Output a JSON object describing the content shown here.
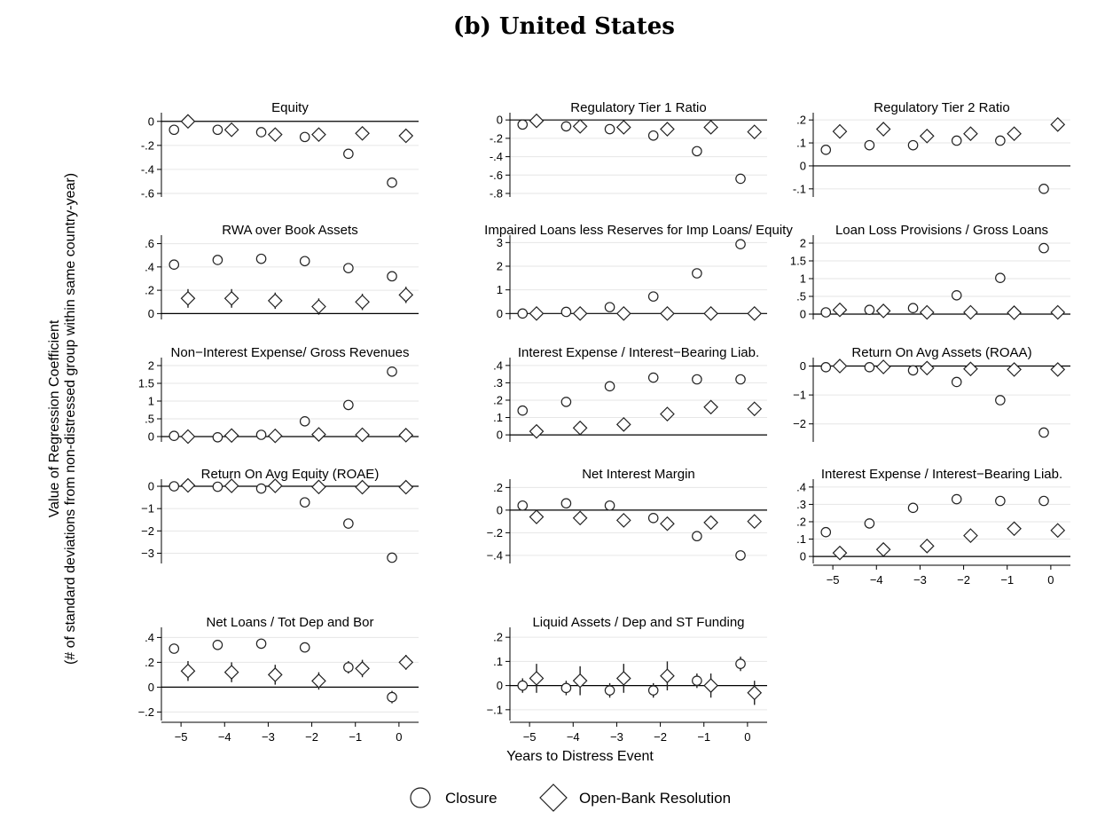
{
  "figure_title": "(b) United States",
  "y_axis_title_line1": "Value of Regression Coefficient",
  "y_axis_title_line2": "(# of standard deviations from non-distressed group within same country-year)",
  "x_axis_title": "Years to Distress Event",
  "legend": {
    "closure": "Closure",
    "open_bank": "Open-Bank Resolution"
  },
  "chart_data": [
    {
      "type": "scatter",
      "title": "Equity",
      "y_ticks": [
        "0",
        "-.2",
        "-.4",
        "-.6"
      ],
      "y_tick_values": [
        0,
        -0.2,
        -0.4,
        -0.6
      ],
      "ylim": [
        -0.6,
        0.05
      ],
      "x_ticks": [],
      "x_tick_values": [],
      "series": [
        {
          "name": "Closure",
          "marker": "circle",
          "x": [
            -5,
            -4,
            -3,
            -2,
            -1,
            0
          ],
          "y": [
            -0.07,
            -0.07,
            -0.09,
            -0.13,
            -0.27,
            -0.51
          ],
          "ci": [
            0.02,
            0.02,
            0.02,
            0.02,
            0.02,
            0.02
          ]
        },
        {
          "name": "Open-Bank Resolution",
          "marker": "diamond",
          "x": [
            -5,
            -4,
            -3,
            -2,
            -1,
            0
          ],
          "y": [
            0.0,
            -0.07,
            -0.11,
            -0.11,
            -0.1,
            -0.12
          ],
          "ci": [
            0.02,
            0.02,
            0.03,
            0.03,
            0.03,
            0.02
          ]
        }
      ]
    },
    {
      "type": "scatter",
      "title": "Regulatory Tier 1 Ratio",
      "y_ticks": [
        "0",
        "-.2",
        "-.4",
        "-.6",
        "-.8"
      ],
      "y_tick_values": [
        0,
        -0.2,
        -0.4,
        -0.6,
        -0.8
      ],
      "ylim": [
        -0.8,
        0.05
      ],
      "x_ticks": [],
      "x_tick_values": [],
      "series": [
        {
          "name": "Closure",
          "marker": "circle",
          "x": [
            -5,
            -4,
            -3,
            -2,
            -1,
            0
          ],
          "y": [
            -0.05,
            -0.07,
            -0.1,
            -0.17,
            -0.34,
            -0.64
          ],
          "ci": [
            0.02,
            0.02,
            0.02,
            0.02,
            0.02,
            0.02
          ]
        },
        {
          "name": "Open-Bank Resolution",
          "marker": "diamond",
          "x": [
            -5,
            -4,
            -3,
            -2,
            -1,
            0
          ],
          "y": [
            -0.01,
            -0.07,
            -0.08,
            -0.1,
            -0.08,
            -0.13
          ],
          "ci": [
            0.03,
            0.03,
            0.04,
            0.04,
            0.03,
            0.03
          ]
        }
      ]
    },
    {
      "type": "scatter",
      "title": "Regulatory Tier 2 Ratio",
      "y_ticks": [
        ".2",
        ".1",
        "0",
        "-.1"
      ],
      "y_tick_values": [
        0.2,
        0.1,
        0,
        -0.1
      ],
      "ylim": [
        -0.12,
        0.22
      ],
      "x_ticks": [],
      "x_tick_values": [],
      "series": [
        {
          "name": "Closure",
          "marker": "circle",
          "x": [
            -5,
            -4,
            -3,
            -2,
            -1,
            0
          ],
          "y": [
            0.07,
            0.09,
            0.09,
            0.11,
            0.11,
            -0.1
          ],
          "ci": [
            0.015,
            0.015,
            0.015,
            0.015,
            0.015,
            0.015
          ]
        },
        {
          "name": "Open-Bank Resolution",
          "marker": "diamond",
          "x": [
            -5,
            -4,
            -3,
            -2,
            -1,
            0
          ],
          "y": [
            0.15,
            0.16,
            0.13,
            0.14,
            0.14,
            0.18
          ],
          "ci": [
            0.03,
            0.03,
            0.03,
            0.03,
            0.025,
            0.02
          ]
        }
      ]
    },
    {
      "type": "scatter",
      "title": "RWA over Book Assets",
      "y_ticks": [
        ".6",
        ".4",
        ".2",
        "0"
      ],
      "y_tick_values": [
        0.6,
        0.4,
        0.2,
        0
      ],
      "ylim": [
        -0.02,
        0.65
      ],
      "x_ticks": [],
      "x_tick_values": [],
      "series": [
        {
          "name": "Closure",
          "marker": "circle",
          "x": [
            -5,
            -4,
            -3,
            -2,
            -1,
            0
          ],
          "y": [
            0.42,
            0.46,
            0.47,
            0.45,
            0.39,
            0.32
          ],
          "ci": [
            0.04,
            0.04,
            0.04,
            0.04,
            0.04,
            0.04
          ]
        },
        {
          "name": "Open-Bank Resolution",
          "marker": "diamond",
          "x": [
            -5,
            -4,
            -3,
            -2,
            -1,
            0
          ],
          "y": [
            0.13,
            0.13,
            0.11,
            0.06,
            0.1,
            0.16
          ],
          "ci": [
            0.08,
            0.08,
            0.07,
            0.07,
            0.07,
            0.07
          ]
        }
      ]
    },
    {
      "type": "scatter",
      "title": "Impaired Loans less Reserves for Imp Loans/ Equity",
      "y_ticks": [
        "3",
        "2",
        "1",
        "0"
      ],
      "y_tick_values": [
        3,
        2,
        1,
        0
      ],
      "ylim": [
        -0.1,
        3.2
      ],
      "x_ticks": [],
      "x_tick_values": [],
      "series": [
        {
          "name": "Closure",
          "marker": "circle",
          "x": [
            -5,
            -4,
            -3,
            -2,
            -1,
            0
          ],
          "y": [
            0.0,
            0.07,
            0.27,
            0.72,
            1.7,
            2.93
          ],
          "ci": [
            0.05,
            0.05,
            0.05,
            0.05,
            0.05,
            0.05
          ]
        },
        {
          "name": "Open-Bank Resolution",
          "marker": "diamond",
          "x": [
            -5,
            -4,
            -3,
            -2,
            -1,
            0
          ],
          "y": [
            0.0,
            0.0,
            0.0,
            0.0,
            0.0,
            0.0
          ],
          "ci": [
            0.03,
            0.03,
            0.03,
            0.03,
            0.03,
            0.03
          ]
        }
      ]
    },
    {
      "type": "scatter",
      "title": "Loan Loss Provisions / Gross Loans",
      "y_ticks": [
        "2",
        "1.5",
        "1",
        ".5",
        "0"
      ],
      "y_tick_values": [
        2,
        1.5,
        1,
        0.5,
        0
      ],
      "ylim": [
        -0.05,
        2.15
      ],
      "x_ticks": [],
      "x_tick_values": [],
      "series": [
        {
          "name": "Closure",
          "marker": "circle",
          "x": [
            -5,
            -4,
            -3,
            -2,
            -1,
            0
          ],
          "y": [
            0.05,
            0.12,
            0.17,
            0.53,
            1.02,
            1.86
          ],
          "ci": [
            0.04,
            0.04,
            0.04,
            0.04,
            0.04,
            0.04
          ]
        },
        {
          "name": "Open-Bank Resolution",
          "marker": "diamond",
          "x": [
            -5,
            -4,
            -3,
            -2,
            -1,
            0
          ],
          "y": [
            0.12,
            0.09,
            0.05,
            0.05,
            0.04,
            0.05
          ],
          "ci": [
            0.04,
            0.04,
            0.04,
            0.04,
            0.04,
            0.04
          ]
        }
      ]
    },
    {
      "type": "scatter",
      "title": "Non−Interest Expense/ Gross Revenues",
      "y_ticks": [
        "2",
        "1.5",
        "1",
        ".5",
        "0"
      ],
      "y_tick_values": [
        2,
        1.5,
        1,
        0.5,
        0
      ],
      "ylim": [
        -0.05,
        2.15
      ],
      "x_ticks": [],
      "x_tick_values": [],
      "series": [
        {
          "name": "Closure",
          "marker": "circle",
          "x": [
            -5,
            -4,
            -3,
            -2,
            -1,
            0
          ],
          "y": [
            0.02,
            -0.02,
            0.05,
            0.43,
            0.89,
            1.83
          ],
          "ci": [
            0.04,
            0.04,
            0.04,
            0.04,
            0.04,
            0.04
          ]
        },
        {
          "name": "Open-Bank Resolution",
          "marker": "diamond",
          "x": [
            -5,
            -4,
            -3,
            -2,
            -1,
            0
          ],
          "y": [
            0.0,
            0.03,
            0.02,
            0.06,
            0.05,
            0.04
          ],
          "ci": [
            0.04,
            0.04,
            0.04,
            0.04,
            0.04,
            0.04
          ]
        }
      ]
    },
    {
      "type": "scatter",
      "title": "Interest Expense / Interest−Bearing Liab.",
      "y_ticks": [
        ".4",
        ".3",
        ".2",
        ".1",
        "0"
      ],
      "y_tick_values": [
        0.4,
        0.3,
        0.2,
        0.1,
        0
      ],
      "ylim": [
        -0.02,
        0.43
      ],
      "x_ticks": [],
      "x_tick_values": [],
      "series": [
        {
          "name": "Closure",
          "marker": "circle",
          "x": [
            -5,
            -4,
            -3,
            -2,
            -1,
            0
          ],
          "y": [
            0.14,
            0.19,
            0.28,
            0.33,
            0.32,
            0.32
          ],
          "ci": [
            0.02,
            0.02,
            0.02,
            0.02,
            0.02,
            0.02
          ]
        },
        {
          "name": "Open-Bank Resolution",
          "marker": "diamond",
          "x": [
            -5,
            -4,
            -3,
            -2,
            -1,
            0
          ],
          "y": [
            0.02,
            0.04,
            0.06,
            0.12,
            0.16,
            0.15
          ],
          "ci": [
            0.03,
            0.03,
            0.03,
            0.03,
            0.03,
            0.03
          ]
        }
      ]
    },
    {
      "type": "scatter",
      "title": "Return On Avg Assets (ROAA)",
      "y_ticks": [
        "0",
        "−1",
        "−2"
      ],
      "y_tick_values": [
        0,
        -1,
        -2
      ],
      "ylim": [
        -2.5,
        0.2
      ],
      "x_ticks": [],
      "x_tick_values": [],
      "series": [
        {
          "name": "Closure",
          "marker": "circle",
          "x": [
            -5,
            -4,
            -3,
            -2,
            -1,
            0
          ],
          "y": [
            -0.04,
            -0.04,
            -0.15,
            -0.55,
            -1.18,
            -2.3
          ],
          "ci": [
            0.05,
            0.05,
            0.05,
            0.05,
            0.05,
            0.05
          ]
        },
        {
          "name": "Open-Bank Resolution",
          "marker": "diamond",
          "x": [
            -5,
            -4,
            -3,
            -2,
            -1,
            0
          ],
          "y": [
            0.0,
            -0.03,
            -0.07,
            -0.1,
            -0.12,
            -0.12
          ],
          "ci": [
            0.05,
            0.05,
            0.05,
            0.05,
            0.05,
            0.05
          ]
        }
      ]
    },
    {
      "type": "scatter",
      "title": "Return On Avg Equity (ROAE)",
      "y_ticks": [
        "0",
        "−1",
        "−2",
        "−3"
      ],
      "y_tick_values": [
        0,
        -1,
        -2,
        -3
      ],
      "ylim": [
        -3.3,
        0.2
      ],
      "x_ticks": [],
      "x_tick_values": [],
      "series": [
        {
          "name": "Closure",
          "marker": "circle",
          "x": [
            -5,
            -4,
            -3,
            -2,
            -1,
            0
          ],
          "y": [
            0.0,
            -0.02,
            -0.1,
            -0.72,
            -1.67,
            -3.2
          ],
          "ci": [
            0.06,
            0.06,
            0.06,
            0.06,
            0.06,
            0.06
          ]
        },
        {
          "name": "Open-Bank Resolution",
          "marker": "diamond",
          "x": [
            -5,
            -4,
            -3,
            -2,
            -1,
            0
          ],
          "y": [
            0.04,
            0.02,
            0.02,
            -0.03,
            -0.04,
            -0.04
          ],
          "ci": [
            0.06,
            0.06,
            0.06,
            0.06,
            0.06,
            0.06
          ]
        }
      ]
    },
    {
      "type": "scatter",
      "title": "Net Interest Margin",
      "y_ticks": [
        ".2",
        "0",
        "−.2",
        "−.4"
      ],
      "y_tick_values": [
        0.2,
        0,
        -0.2,
        -0.4
      ],
      "ylim": [
        -0.44,
        0.25
      ],
      "x_ticks": [],
      "x_tick_values": [],
      "series": [
        {
          "name": "Closure",
          "marker": "circle",
          "x": [
            -5,
            -4,
            -3,
            -2,
            -1,
            0
          ],
          "y": [
            0.04,
            0.06,
            0.04,
            -0.07,
            -0.23,
            -0.4
          ],
          "ci": [
            0.03,
            0.03,
            0.03,
            0.03,
            0.03,
            0.03
          ]
        },
        {
          "name": "Open-Bank Resolution",
          "marker": "diamond",
          "x": [
            -5,
            -4,
            -3,
            -2,
            -1,
            0
          ],
          "y": [
            -0.06,
            -0.07,
            -0.09,
            -0.12,
            -0.11,
            -0.1
          ],
          "ci": [
            0.04,
            0.04,
            0.04,
            0.04,
            0.04,
            0.04
          ]
        }
      ]
    },
    {
      "type": "scatter",
      "title": "Interest Expense / Interest−Bearing Liab.",
      "y_ticks": [
        ".4",
        ".3",
        ".2",
        ".1",
        "0"
      ],
      "y_tick_values": [
        0.4,
        0.3,
        0.2,
        0.1,
        0
      ],
      "ylim": [
        -0.02,
        0.43
      ],
      "x_ticks": [
        "−5",
        "−4",
        "−3",
        "−2",
        "−1",
        "0"
      ],
      "x_tick_values": [
        -5,
        -4,
        -3,
        -2,
        -1,
        0
      ],
      "series": [
        {
          "name": "Closure",
          "marker": "circle",
          "x": [
            -5,
            -4,
            -3,
            -2,
            -1,
            0
          ],
          "y": [
            0.14,
            0.19,
            0.28,
            0.33,
            0.32,
            0.32
          ],
          "ci": [
            0.02,
            0.02,
            0.02,
            0.02,
            0.02,
            0.02
          ]
        },
        {
          "name": "Open-Bank Resolution",
          "marker": "diamond",
          "x": [
            -5,
            -4,
            -3,
            -2,
            -1,
            0
          ],
          "y": [
            0.02,
            0.04,
            0.06,
            0.12,
            0.16,
            0.15
          ],
          "ci": [
            0.03,
            0.03,
            0.03,
            0.03,
            0.03,
            0.03
          ]
        }
      ]
    },
    {
      "type": "scatter",
      "title": "Net Loans / Tot Dep and Bor",
      "y_ticks": [
        ".4",
        ".2",
        "0",
        "−.2"
      ],
      "y_tick_values": [
        0.4,
        0.2,
        0,
        -0.2
      ],
      "ylim": [
        -0.24,
        0.46
      ],
      "x_ticks": [
        "−5",
        "−4",
        "−3",
        "−2",
        "−1",
        "0"
      ],
      "x_tick_values": [
        -5,
        -4,
        -3,
        -2,
        -1,
        0
      ],
      "series": [
        {
          "name": "Closure",
          "marker": "circle",
          "x": [
            -5,
            -4,
            -3,
            -2,
            -1,
            0
          ],
          "y": [
            0.31,
            0.34,
            0.35,
            0.32,
            0.16,
            -0.08
          ],
          "ci": [
            0.04,
            0.04,
            0.04,
            0.04,
            0.05,
            0.05
          ]
        },
        {
          "name": "Open-Bank Resolution",
          "marker": "diamond",
          "x": [
            -5,
            -4,
            -3,
            -2,
            -1,
            0
          ],
          "y": [
            0.13,
            0.12,
            0.1,
            0.05,
            0.15,
            0.2
          ],
          "ci": [
            0.08,
            0.08,
            0.08,
            0.07,
            0.07,
            0.06
          ]
        }
      ]
    },
    {
      "type": "scatter",
      "title": "Liquid Assets / Dep and ST Funding",
      "y_ticks": [
        ".2",
        ".1",
        "0",
        "−.1"
      ],
      "y_tick_values": [
        0.2,
        0.1,
        0,
        -0.1
      ],
      "ylim": [
        -0.13,
        0.23
      ],
      "x_ticks": [
        "−5",
        "−4",
        "−3",
        "−2",
        "−1",
        "0"
      ],
      "x_tick_values": [
        -5,
        -4,
        -3,
        -2,
        -1,
        0
      ],
      "series": [
        {
          "name": "Closure",
          "marker": "circle",
          "x": [
            -5,
            -4,
            -3,
            -2,
            -1,
            0
          ],
          "y": [
            0.0,
            -0.01,
            -0.02,
            -0.02,
            0.02,
            0.09
          ],
          "ci": [
            0.03,
            0.03,
            0.03,
            0.03,
            0.03,
            0.03
          ]
        },
        {
          "name": "Open-Bank Resolution",
          "marker": "diamond",
          "x": [
            -5,
            -4,
            -3,
            -2,
            -1,
            0
          ],
          "y": [
            0.03,
            0.02,
            0.03,
            0.04,
            0.0,
            -0.03
          ],
          "ci": [
            0.06,
            0.06,
            0.06,
            0.06,
            0.05,
            0.05
          ]
        }
      ]
    }
  ]
}
